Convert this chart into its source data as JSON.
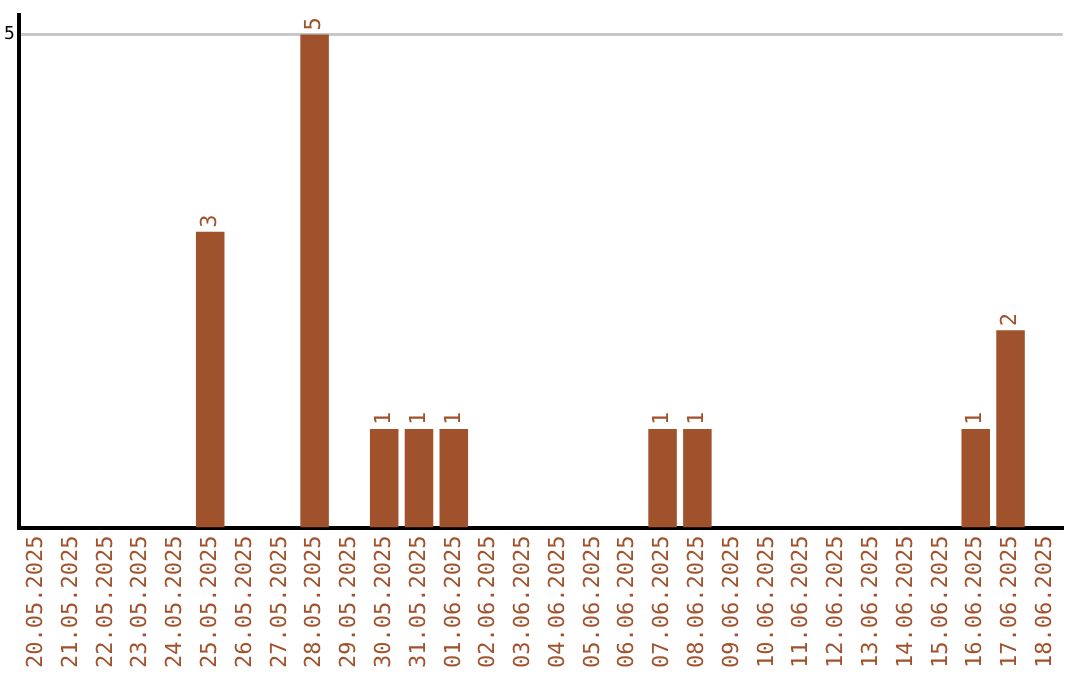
{
  "chart_data": {
    "type": "bar",
    "categories": [
      "20.05.2025",
      "21.05.2025",
      "22.05.2025",
      "23.05.2025",
      "24.05.2025",
      "25.05.2025",
      "26.05.2025",
      "27.05.2025",
      "28.05.2025",
      "29.05.2025",
      "30.05.2025",
      "31.05.2025",
      "01.06.2025",
      "02.06.2025",
      "03.06.2025",
      "04.06.2025",
      "05.06.2025",
      "06.06.2025",
      "07.06.2025",
      "08.06.2025",
      "09.06.2025",
      "10.06.2025",
      "11.06.2025",
      "12.06.2025",
      "13.06.2025",
      "14.06.2025",
      "15.06.2025",
      "16.06.2025",
      "17.06.2025",
      "18.06.2025"
    ],
    "values": [
      0,
      0,
      0,
      0,
      0,
      3,
      0,
      0,
      5,
      0,
      1,
      1,
      1,
      0,
      0,
      0,
      0,
      0,
      1,
      1,
      0,
      0,
      0,
      0,
      0,
      0,
      0,
      1,
      2,
      0
    ],
    "value_labels": [
      null,
      null,
      null,
      null,
      null,
      "3",
      null,
      null,
      "5",
      null,
      "1",
      "1",
      "1",
      null,
      null,
      null,
      null,
      null,
      "1",
      "1",
      null,
      null,
      null,
      null,
      null,
      null,
      null,
      "1",
      "2",
      null
    ],
    "color": "#a0522d",
    "ylim": [
      0,
      5.2
    ],
    "yticks": [
      5
    ],
    "grid": "y",
    "legend": false
  }
}
